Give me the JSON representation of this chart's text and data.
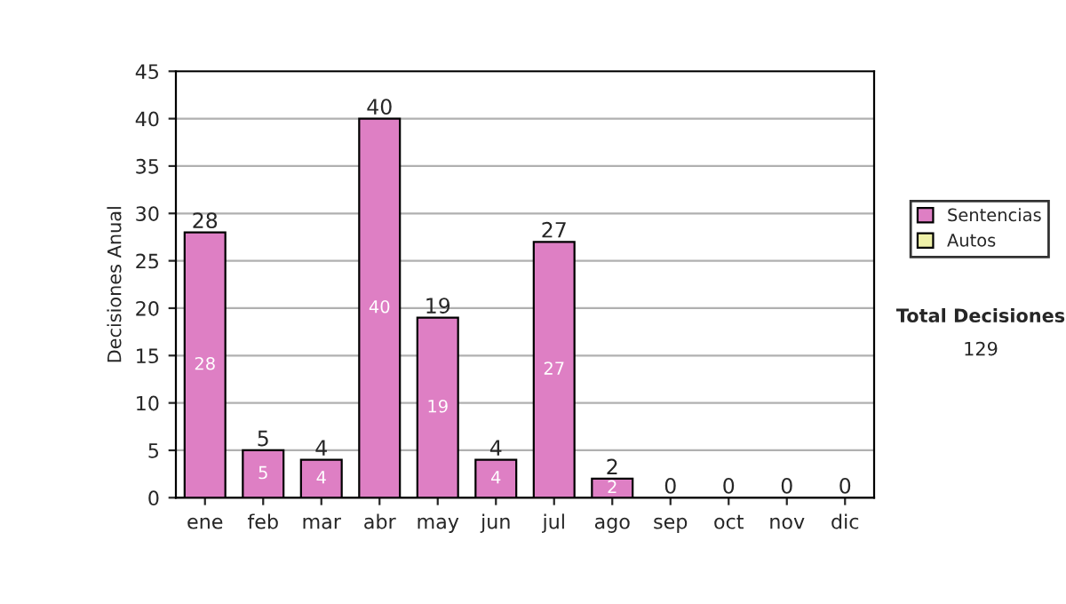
{
  "chart_data": {
    "type": "bar",
    "ylabel": "Decisiones Anual",
    "categories": [
      "ene",
      "feb",
      "mar",
      "abr",
      "may",
      "jun",
      "jul",
      "ago",
      "sep",
      "oct",
      "nov",
      "dic"
    ],
    "series": [
      {
        "name": "Sentencias",
        "color": "#de7fc4",
        "values": [
          28,
          5,
          4,
          40,
          19,
          4,
          27,
          2,
          0,
          0,
          0,
          0
        ],
        "value_labels": [
          "28",
          "5",
          "4",
          "40",
          "19",
          "4",
          "27",
          "2",
          null,
          null,
          null,
          null
        ]
      },
      {
        "name": "Autos",
        "color": "#eef0a8",
        "values": [
          0,
          0,
          0,
          0,
          0,
          0,
          0,
          0,
          0,
          0,
          0,
          0
        ]
      }
    ],
    "stacked": true,
    "totals": [
      "28",
      "5",
      "4",
      "40",
      "19",
      "4",
      "27",
      "2",
      "0",
      "0",
      "0",
      "0"
    ],
    "ylim": [
      0,
      45
    ],
    "yticks": [
      0,
      5,
      10,
      15,
      20,
      25,
      30,
      35,
      40,
      45
    ],
    "grid": "y",
    "legend": "right",
    "annotations": [
      "Total Decisiones",
      "129"
    ]
  }
}
